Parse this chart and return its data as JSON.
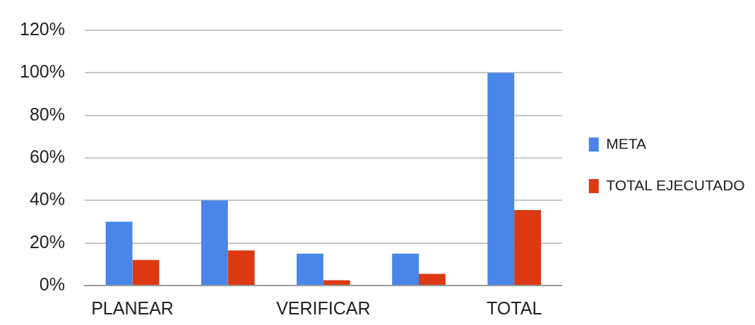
{
  "chart_data": {
    "type": "bar",
    "categories": [
      "PLANEAR",
      null,
      "VERIFICAR",
      null,
      "TOTAL"
    ],
    "series": [
      {
        "name": "META",
        "color": "#4a86e8",
        "values": [
          30,
          40,
          15,
          15,
          100
        ]
      },
      {
        "name": "TOTAL EJECUTADO",
        "color": "#dc3912",
        "values": [
          12,
          16.5,
          2.5,
          5.5,
          35.5
        ]
      }
    ],
    "ylim": [
      0,
      120
    ],
    "yticks": [
      {
        "value": 0,
        "label": "0%"
      },
      {
        "value": 20,
        "label": "20%"
      },
      {
        "value": 40,
        "label": "40%"
      },
      {
        "value": 60,
        "label": "60%"
      },
      {
        "value": 80,
        "label": "80%"
      },
      {
        "value": 100,
        "label": "100%"
      },
      {
        "value": 120,
        "label": "120%"
      }
    ],
    "grid": "y",
    "legend": "right"
  }
}
